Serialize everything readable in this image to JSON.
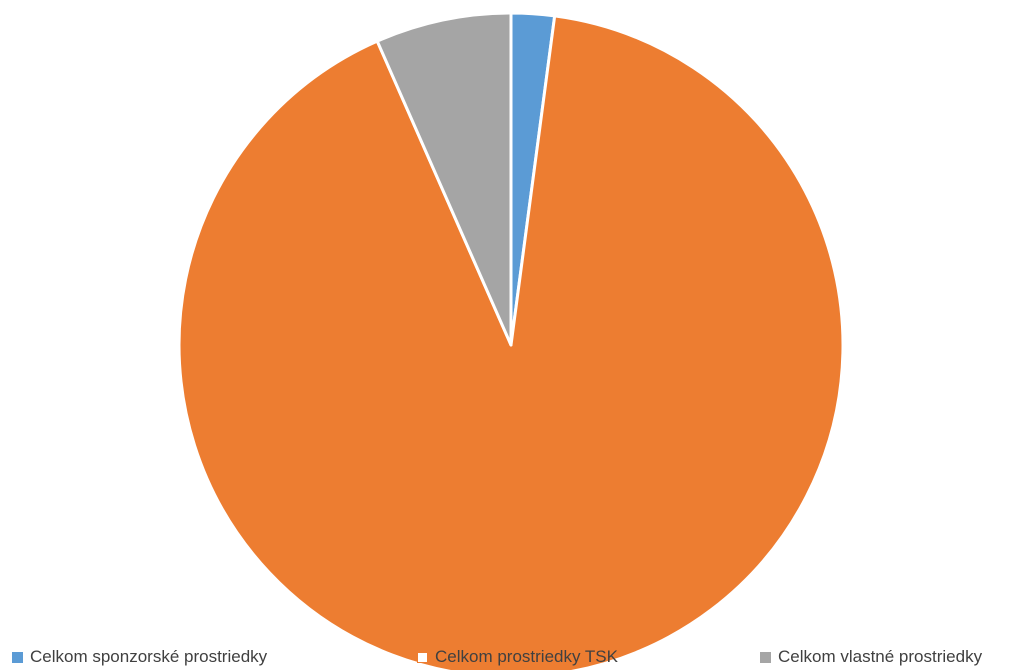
{
  "chart_data": {
    "type": "pie",
    "title": "",
    "legend_position": "bottom",
    "start_angle_deg": 0,
    "direction": "clockwise",
    "slices": [
      {
        "label": "Celkom sponzorské prostriedky",
        "value": 2.1,
        "color": "#5B9BD5",
        "legend_swatch_fill": "#5B9BD5"
      },
      {
        "label": "Celkom prostriedky TSK",
        "value": 91.3,
        "color": "#ED7D31",
        "legend_swatch_fill": "#FFFFFF"
      },
      {
        "label": "Celkom vlastné prostriedky",
        "value": 6.6,
        "color": "#A5A5A5",
        "legend_swatch_fill": "#A5A5A5"
      }
    ]
  }
}
